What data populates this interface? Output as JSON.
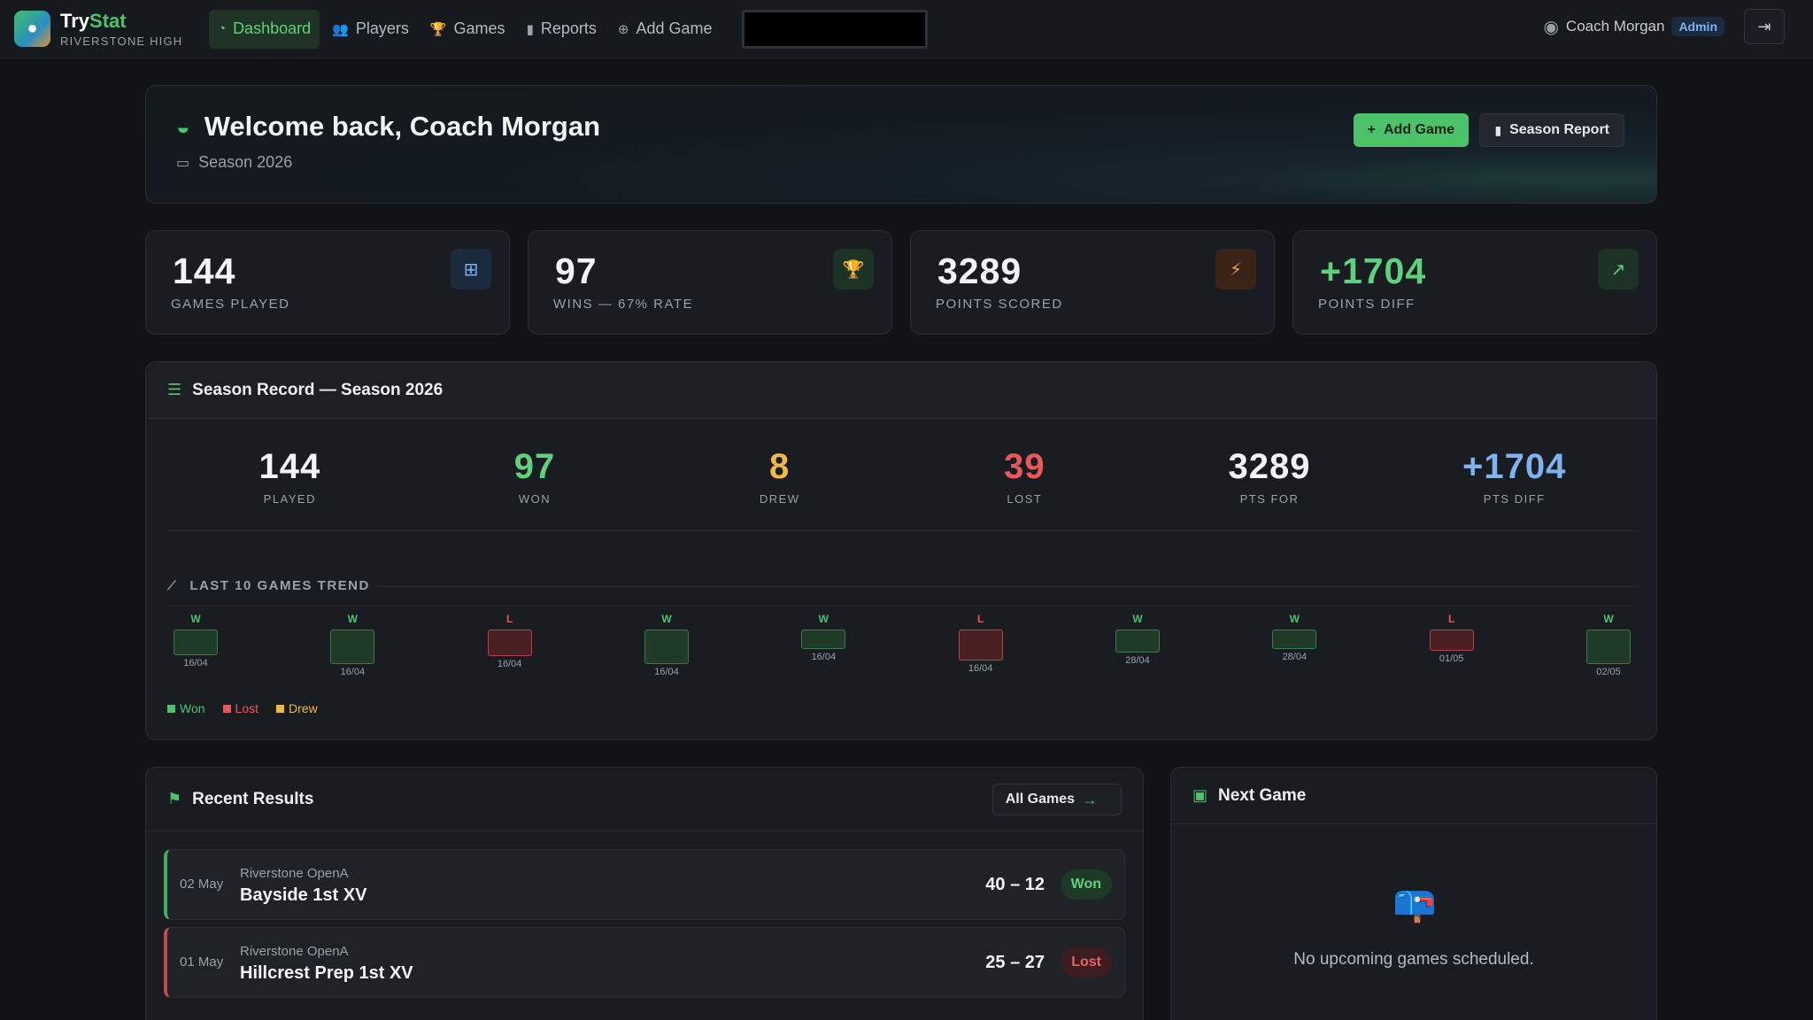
{
  "brand": {
    "name_part1": "Try",
    "name_part2": "Stat",
    "school": "RIVERSTONE HIGH"
  },
  "nav": {
    "items": [
      {
        "label": "Dashboard",
        "icon": "dashboard-icon",
        "active": true
      },
      {
        "label": "Players",
        "icon": "users-icon"
      },
      {
        "label": "Games",
        "icon": "trophy-icon"
      },
      {
        "label": "Reports",
        "icon": "bar-chart-icon"
      },
      {
        "label": "Add Game",
        "icon": "plus-circle-icon"
      }
    ]
  },
  "user": {
    "name": "Coach Morgan",
    "role": "Admin"
  },
  "welcome": {
    "title": "Welcome back, Coach Morgan",
    "season": "Season 2026",
    "add_game_label": "Add Game",
    "season_report_label": "Season Report"
  },
  "stats": [
    {
      "value": "144",
      "label": "GAMES PLAYED",
      "icon": "gamepad-icon",
      "icon_color": "#7fb2f0",
      "icon_bg": "#1b2a3d"
    },
    {
      "value": "97",
      "label": "WINS — 67% RATE",
      "icon": "trophy-icon",
      "icon_color": "#5fd07e",
      "icon_bg": "#1d3326"
    },
    {
      "value": "3289",
      "label": "POINTS SCORED",
      "icon": "bolt-icon",
      "icon_color": "#f0a050",
      "icon_bg": "#3a2418"
    },
    {
      "value": "+1704",
      "label": "POINTS DIFF",
      "icon": "trend-up-icon",
      "icon_color": "#5fd07e",
      "icon_bg": "#1d3326"
    }
  ],
  "record": {
    "title": "Season Record — Season 2026",
    "cols": [
      {
        "value": "144",
        "label": "PLAYED",
        "color": "#f2f4f6"
      },
      {
        "value": "97",
        "label": "WON",
        "color": "#5fd07e"
      },
      {
        "value": "8",
        "label": "DREW",
        "color": "#f0b84a"
      },
      {
        "value": "39",
        "label": "LOST",
        "color": "#e8585d"
      },
      {
        "value": "3289",
        "label": "PTS FOR",
        "color": "#f2f4f6"
      },
      {
        "value": "+1704",
        "label": "PTS DIFF",
        "color": "#7fb2f0"
      }
    ],
    "trend_label": "LAST 10 GAMES TREND",
    "legend": [
      {
        "label": "Won",
        "color": "#4cc36b"
      },
      {
        "label": "Lost",
        "color": "#e8585d"
      },
      {
        "label": "Drew",
        "color": "#f0b84a"
      }
    ]
  },
  "trend": [
    {
      "result": "W",
      "date": "16/04",
      "magnitude": 0.62
    },
    {
      "result": "W",
      "date": "16/04",
      "magnitude": 0.85
    },
    {
      "result": "L",
      "date": "16/04",
      "magnitude": 0.66
    },
    {
      "result": "W",
      "date": "16/04",
      "magnitude": 0.85
    },
    {
      "result": "W",
      "date": "16/04",
      "magnitude": 0.48
    },
    {
      "result": "L",
      "date": "16/04",
      "magnitude": 0.75
    },
    {
      "result": "W",
      "date": "28/04",
      "magnitude": 0.57
    },
    {
      "result": "W",
      "date": "28/04",
      "magnitude": 0.48
    },
    {
      "result": "L",
      "date": "01/05",
      "magnitude": 0.52
    },
    {
      "result": "W",
      "date": "02/05",
      "magnitude": 0.85
    }
  ],
  "recent": {
    "title": "Recent Results",
    "all_games_label": "All Games",
    "results": [
      {
        "date": "02 May",
        "competition": "Riverstone OpenA",
        "opponent": "Bayside 1st XV",
        "score": "40 – 12",
        "outcome": "Won"
      },
      {
        "date": "01 May",
        "competition": "Riverstone OpenA",
        "opponent": "Hillcrest Prep 1st XV",
        "score": "25 – 27",
        "outcome": "Lost"
      }
    ]
  },
  "next_game": {
    "title": "Next Game",
    "empty_text": "No upcoming games scheduled.",
    "empty_icon": "mailbox-icon"
  }
}
